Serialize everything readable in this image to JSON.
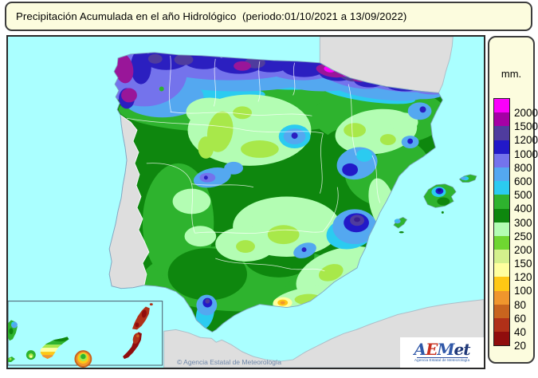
{
  "title": "Precipitación Acumulada en el año Hidrológico  (periodo:01/10/2021 a 13/09/2022)",
  "legend": {
    "unit_label": "mm.",
    "entries": [
      {
        "value": "2000",
        "color": "#FB00FB"
      },
      {
        "value": "1500",
        "color": "#A500A5"
      },
      {
        "value": "1200",
        "color": "#4F3C9E"
      },
      {
        "value": "1000",
        "color": "#2219C8"
      },
      {
        "value": "800",
        "color": "#7473EC"
      },
      {
        "value": "600",
        "color": "#54A8F0"
      },
      {
        "value": "500",
        "color": "#2BCBF0"
      },
      {
        "value": "400",
        "color": "#2EB32E"
      },
      {
        "value": "300",
        "color": "#0E870E"
      },
      {
        "value": "250",
        "color": "#B3FDB3"
      },
      {
        "value": "200",
        "color": "#6FD631"
      },
      {
        "value": "150",
        "color": "#D4F08C"
      },
      {
        "value": "120",
        "color": "#FFFF9E"
      },
      {
        "value": "100",
        "color": "#FFC814"
      },
      {
        "value": "80",
        "color": "#F0962D"
      },
      {
        "value": "60",
        "color": "#C8641E"
      },
      {
        "value": "40",
        "color": "#B03018"
      },
      {
        "value": "20",
        "color": "#900D0D"
      }
    ]
  },
  "map": {
    "sea_color": "#AAFFFF",
    "no_data_land_color": "#DEDEDE",
    "copyright": "© Agencia Estatal de Meteorología"
  },
  "logo": {
    "letters": [
      {
        "ch": "A",
        "color": "#3058A8"
      },
      {
        "ch": "E",
        "color": "#C83020"
      },
      {
        "ch": "M",
        "color": "#3058A8"
      },
      {
        "ch": "e",
        "color": "#1F3878"
      },
      {
        "ch": "t",
        "color": "#1F3878"
      }
    ],
    "subtitle": "Agencia Estatal de Meteorología"
  }
}
